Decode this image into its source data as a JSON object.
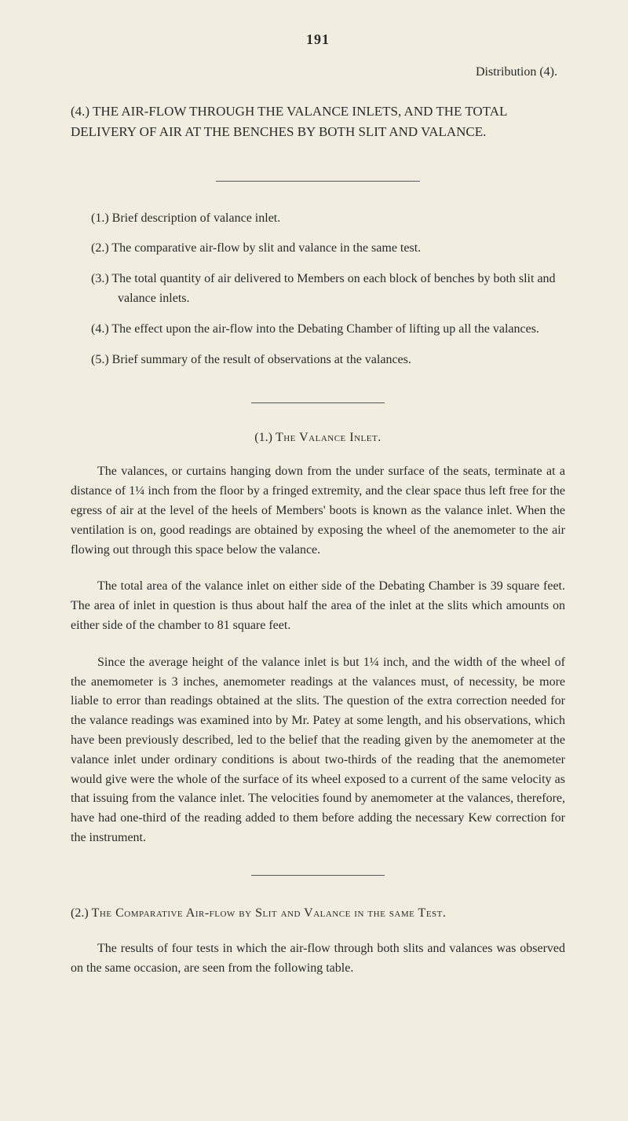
{
  "page_number": "191",
  "distribution": "Distribution (4).",
  "heading": {
    "num": "(4.)",
    "line1": "THE AIR-FLOW THROUGH THE VALANCE INLETS, AND",
    "line2": "THE TOTAL DELIVERY OF AIR AT THE BENCHES BY BOTH SLIT AND VALANCE."
  },
  "points": [
    {
      "num": "(1.)",
      "text": "Brief description of valance inlet."
    },
    {
      "num": "(2.)",
      "text": "The comparative air-flow by slit and valance in the same test."
    },
    {
      "num": "(3.)",
      "text": "The total quantity of air delivered to Members on each block of benches by both slit and valance inlets."
    },
    {
      "num": "(4.)",
      "text": "The effect upon the air-flow into the Debating Chamber of lifting up all the valances."
    },
    {
      "num": "(5.)",
      "text": "Brief summary of the result of observations at the valances."
    }
  ],
  "section1_title_before": "(1.) ",
  "section1_title_sc": "The Valance Inlet.",
  "paras": [
    "The valances, or curtains hanging down from the under surface of the seats, terminate at a distance of 1¼ inch from the floor by a fringed extremity, and the clear space thus left free for the egress of air at the level of the heels of Members' boots is known as the valance inlet. When the ventilation is on, good readings are obtained by exposing the wheel of the anemometer to the air flowing out through this space below the valance.",
    "The total area of the valance inlet on either side of the Debating Chamber is 39 square feet. The area of inlet in question is thus about half the area of the inlet at the slits which amounts on either side of the chamber to 81 square feet.",
    "Since the average height of the valance inlet is but 1¼ inch, and the width of the wheel of the anemometer is 3 inches, anemometer readings at the valances must, of necessity, be more liable to error than readings obtained at the slits. The question of the extra correction needed for the valance readings was examined into by Mr. Patey at some length, and his observations, which have been previously described, led to the belief that the reading given by the anemometer at the valance inlet under ordinary conditions is about two-thirds of the reading that the anemometer would give were the whole of the surface of its wheel exposed to a current of the same velocity as that issuing from the valance inlet. The velocities found by anemometer at the valances, therefore, have had one-third of the reading added to them before adding the necessary Kew correction for the instrument."
  ],
  "section2_title_before": "(2.) ",
  "section2_title_sc": "The Comparative Air-flow by Slit and Valance in the same Test.",
  "para4": "The results of four tests in which the air-flow through both slits and valances was observed on the same occasion, are seen from the following table."
}
